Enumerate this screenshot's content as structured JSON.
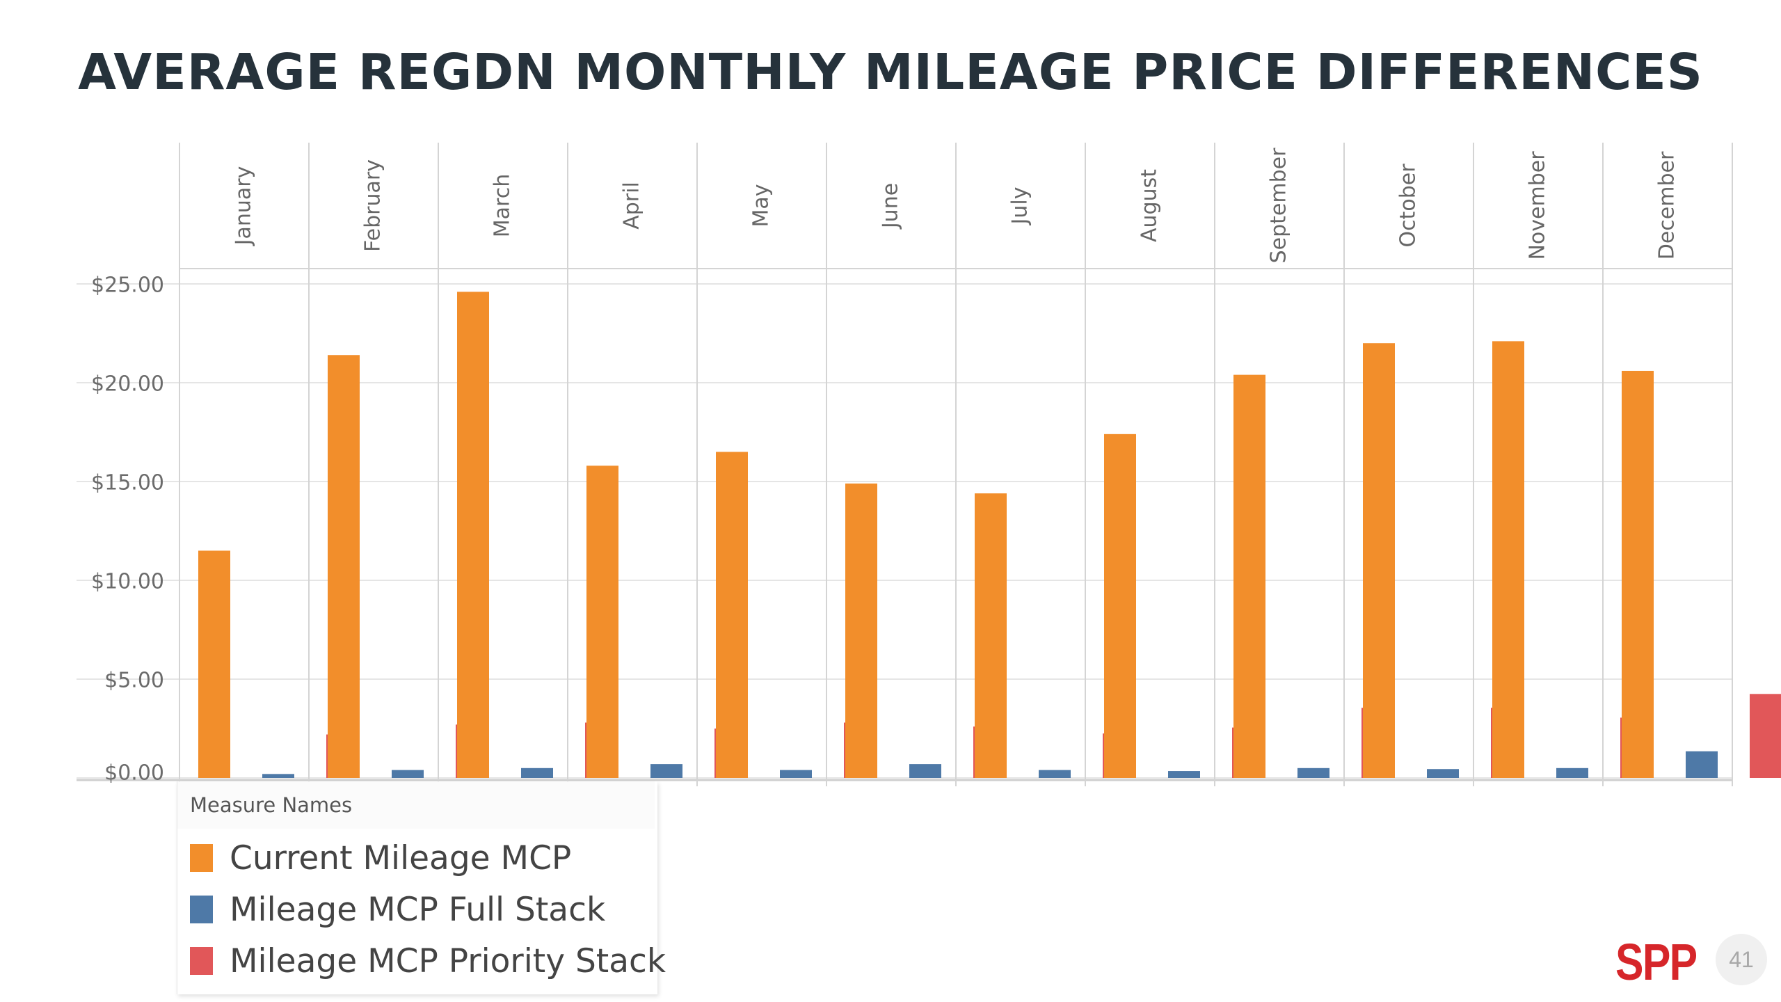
{
  "slide": {
    "title": "AVERAGE REGDN MONTHLY MILEAGE PRICE DIFFERENCES",
    "page_number": "41",
    "logo_text": "SPP"
  },
  "legend": {
    "title": "Measure Names",
    "items": [
      {
        "label": "Current Mileage MCP",
        "color": "#f28e2b"
      },
      {
        "label": "Mileage MCP Full Stack",
        "color": "#4e79a7"
      },
      {
        "label": "Mileage MCP Priority Stack",
        "color": "#e15759"
      }
    ]
  },
  "colors": {
    "title": "#26323b",
    "logo": "#d6262a",
    "gridline": "#e5e5e5",
    "divider": "#d4d4d4"
  },
  "chart_data": {
    "type": "bar",
    "title": "AVERAGE REGDN MONTHLY MILEAGE PRICE DIFFERENCES",
    "categories": [
      "January",
      "February",
      "March",
      "April",
      "May",
      "June",
      "July",
      "August",
      "September",
      "October",
      "November",
      "December"
    ],
    "series": [
      {
        "name": "Current Mileage MCP",
        "color": "#f28e2b",
        "values": [
          11.5,
          21.4,
          24.6,
          15.8,
          16.5,
          14.9,
          14.4,
          17.4,
          20.4,
          22.0,
          22.1,
          20.6
        ]
      },
      {
        "name": "Mileage MCP Full Stack",
        "color": "#4e79a7",
        "values": [
          0.2,
          0.4,
          0.5,
          0.7,
          0.4,
          0.7,
          0.4,
          0.35,
          0.5,
          0.45,
          0.5,
          1.35
        ]
      },
      {
        "name": "Mileage MCP Priority Stack",
        "color": "#e15759",
        "values": [
          2.2,
          2.7,
          2.8,
          2.5,
          2.8,
          2.6,
          2.25,
          2.55,
          3.55,
          3.55,
          3.05,
          4.25
        ]
      }
    ],
    "y_ticks": [
      "$0.00",
      "$5.00",
      "$10.00",
      "$15.00",
      "$20.00",
      "$25.00"
    ],
    "y_tick_values": [
      0,
      5,
      10,
      15,
      20,
      25
    ],
    "ylim": [
      0,
      25
    ],
    "xlabel": "",
    "ylabel": "",
    "grid": true,
    "legend_position": "bottom-left"
  }
}
